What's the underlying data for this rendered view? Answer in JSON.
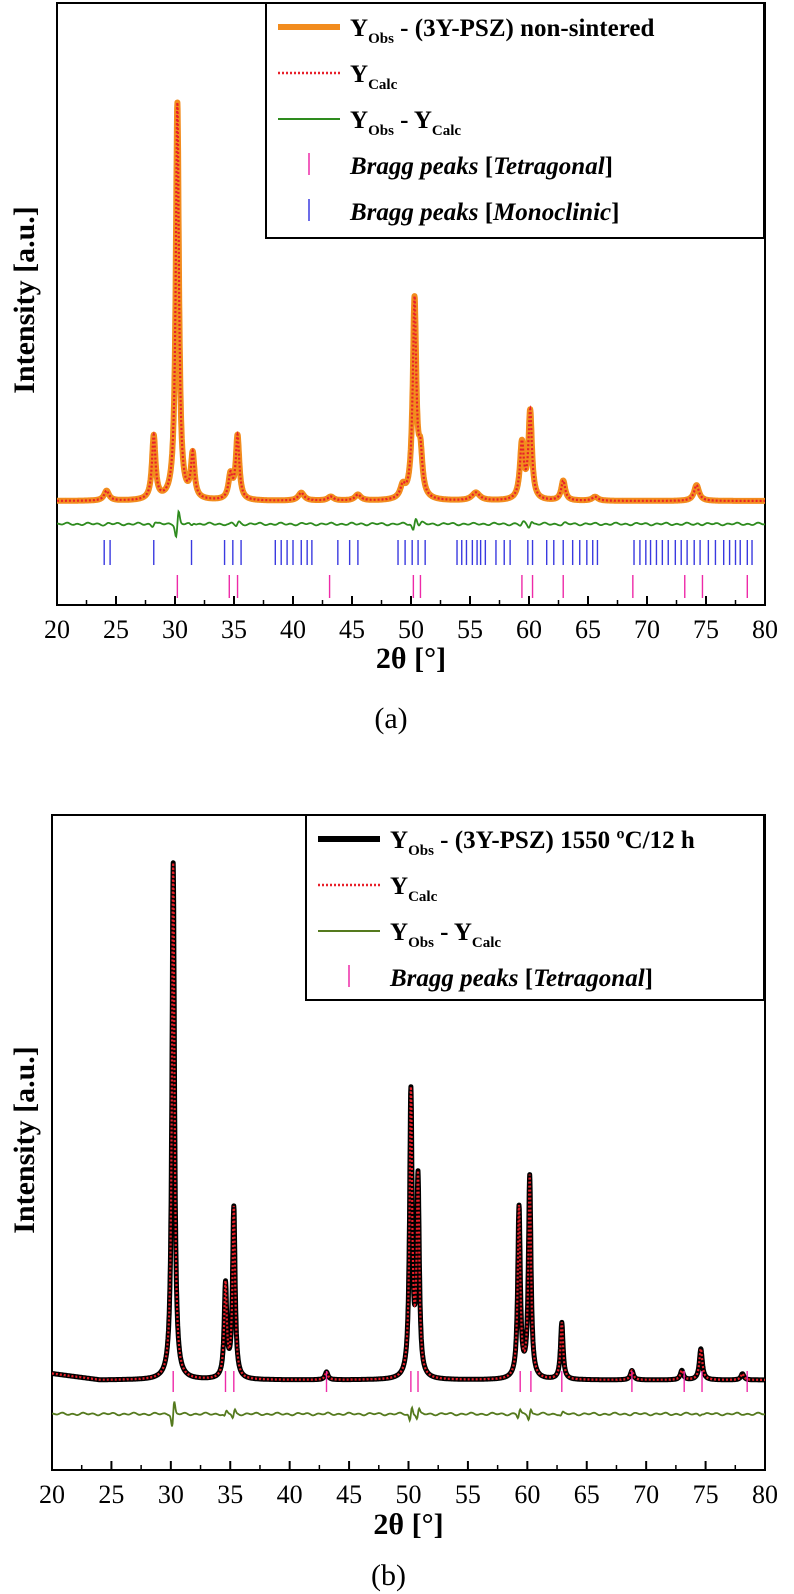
{
  "panels": [
    {
      "label": "(a)",
      "legend": [
        {
          "kind": "obs",
          "main": "Y",
          "sub": "Obs",
          "rest": " - (3Y-PSZ) non-sintered",
          "color": "#f28c1e"
        },
        {
          "kind": "calc",
          "main": "Y",
          "sub": "Calc",
          "color": "#e8202a"
        },
        {
          "kind": "diff",
          "main": "Y",
          "sub": "Obs",
          "mid": " - Y",
          "sub2": "Calc",
          "color": "#2e8b1e"
        },
        {
          "kind": "bragg",
          "italic1": "Bragg peaks",
          "bracket_open": "  [",
          "italic2": "Tetragonal",
          "bracket_close": "]",
          "color": "#ee2aa8"
        },
        {
          "kind": "bragg",
          "italic1": "Bragg peaks",
          "bracket_open": "  [",
          "italic2": "Monoclinic",
          "bracket_close": "]",
          "color": "#3a3ae0"
        }
      ]
    },
    {
      "label": "(b)",
      "legend": [
        {
          "kind": "obs",
          "main": "Y",
          "sub": "Obs",
          "rest": " - (3Y-PSZ) 1550 ºC/12 h",
          "color": "#000000"
        },
        {
          "kind": "calc",
          "main": "Y",
          "sub": "Calc",
          "color": "#e8202a"
        },
        {
          "kind": "diff",
          "main": "Y",
          "sub": "Obs",
          "mid": " - Y",
          "sub2": "Calc",
          "color": "#557a1e"
        },
        {
          "kind": "bragg",
          "italic1": "Bragg peaks",
          "bracket_open": "  [",
          "italic2": "Tetragonal",
          "bracket_close": "]",
          "color": "#ee2aa8"
        }
      ]
    }
  ],
  "chart_data": [
    {
      "type": "line",
      "title": "",
      "xlabel": "2θ [°]",
      "ylabel": "Intensity [a.u.]",
      "xlim": [
        20,
        80
      ],
      "xticks": [
        20,
        25,
        30,
        35,
        40,
        45,
        50,
        55,
        60,
        65,
        70,
        75,
        80
      ],
      "y_tick_labels": false,
      "grid": false,
      "legend_position": "top-right",
      "series": [
        {
          "name": "YObs - (3Y-PSZ) non-sintered",
          "color": "#f28c1e"
        },
        {
          "name": "YCalc",
          "color": "#e8202a",
          "style": "dotted"
        },
        {
          "name": "YObs - YCalc",
          "color": "#2e8b1e"
        }
      ],
      "peaks": [
        {
          "x": 24.2,
          "h": 0.025,
          "w": 0.25
        },
        {
          "x": 28.2,
          "h": 0.16,
          "w": 0.18
        },
        {
          "x": 30.2,
          "h": 1.0,
          "w": 0.16
        },
        {
          "x": 31.5,
          "h": 0.11,
          "w": 0.18
        },
        {
          "x": 34.7,
          "h": 0.06,
          "w": 0.2
        },
        {
          "x": 35.3,
          "h": 0.16,
          "w": 0.18
        },
        {
          "x": 40.7,
          "h": 0.02,
          "w": 0.3
        },
        {
          "x": 43.2,
          "h": 0.01,
          "w": 0.3
        },
        {
          "x": 45.5,
          "h": 0.015,
          "w": 0.3
        },
        {
          "x": 49.3,
          "h": 0.03,
          "w": 0.25
        },
        {
          "x": 50.3,
          "h": 0.5,
          "w": 0.18
        },
        {
          "x": 50.8,
          "h": 0.1,
          "w": 0.2
        },
        {
          "x": 55.5,
          "h": 0.02,
          "w": 0.4
        },
        {
          "x": 59.4,
          "h": 0.14,
          "w": 0.2
        },
        {
          "x": 60.1,
          "h": 0.22,
          "w": 0.18
        },
        {
          "x": 62.9,
          "h": 0.05,
          "w": 0.2
        },
        {
          "x": 65.6,
          "h": 0.01,
          "w": 0.3
        },
        {
          "x": 74.2,
          "h": 0.04,
          "w": 0.25
        }
      ],
      "bragg_tetragonal": [
        30.2,
        34.6,
        35.3,
        43.1,
        50.2,
        50.8,
        59.4,
        60.3,
        62.9,
        68.8,
        73.2,
        74.7,
        78.5
      ],
      "bragg_monoclinic": [
        24.0,
        24.5,
        28.2,
        31.4,
        34.2,
        34.9,
        35.6,
        38.5,
        39.0,
        39.5,
        40.0,
        40.7,
        41.2,
        41.6,
        43.8,
        44.8,
        45.5,
        48.9,
        49.5,
        50.1,
        50.6,
        51.2,
        53.9,
        54.3,
        54.7,
        55.2,
        55.6,
        55.9,
        56.3,
        57.2,
        57.9,
        58.4,
        59.9,
        60.3,
        61.5,
        62.1,
        62.9,
        63.7,
        64.3,
        64.9,
        65.4,
        65.8,
        68.9,
        69.4,
        69.9,
        70.3,
        70.8,
        71.3,
        71.8,
        72.4,
        72.9,
        73.4,
        74.0,
        74.5,
        75.2,
        75.8,
        76.5,
        77.0,
        77.5,
        77.9,
        78.5,
        78.9
      ]
    },
    {
      "type": "line",
      "title": "",
      "xlabel": "2θ [°]",
      "ylabel": "Intensity [a.u.]",
      "xlim": [
        20,
        80
      ],
      "xticks": [
        20,
        25,
        30,
        35,
        40,
        45,
        50,
        55,
        60,
        65,
        70,
        75,
        80
      ],
      "y_tick_labels": false,
      "grid": false,
      "legend_position": "top-right",
      "series": [
        {
          "name": "YObs - (3Y-PSZ) 1550 ºC/12 h",
          "color": "#000000"
        },
        {
          "name": "YCalc",
          "color": "#e8202a",
          "style": "dotted"
        },
        {
          "name": "YObs - YCalc",
          "color": "#557a1e"
        }
      ],
      "peaks": [
        {
          "x": 30.2,
          "h": 1.0,
          "w": 0.13
        },
        {
          "x": 34.6,
          "h": 0.18,
          "w": 0.13
        },
        {
          "x": 35.3,
          "h": 0.33,
          "w": 0.13
        },
        {
          "x": 43.1,
          "h": 0.015,
          "w": 0.15
        },
        {
          "x": 50.2,
          "h": 0.55,
          "w": 0.13
        },
        {
          "x": 50.8,
          "h": 0.38,
          "w": 0.13
        },
        {
          "x": 59.3,
          "h": 0.33,
          "w": 0.13
        },
        {
          "x": 60.2,
          "h": 0.39,
          "w": 0.13
        },
        {
          "x": 62.9,
          "h": 0.11,
          "w": 0.13
        },
        {
          "x": 68.8,
          "h": 0.018,
          "w": 0.15
        },
        {
          "x": 73.0,
          "h": 0.018,
          "w": 0.15
        },
        {
          "x": 74.6,
          "h": 0.06,
          "w": 0.15
        },
        {
          "x": 78.1,
          "h": 0.012,
          "w": 0.15
        }
      ],
      "bragg_tetragonal": [
        30.2,
        34.6,
        35.3,
        43.1,
        50.2,
        50.8,
        59.4,
        60.3,
        62.9,
        68.8,
        73.2,
        74.7,
        78.5
      ]
    }
  ]
}
